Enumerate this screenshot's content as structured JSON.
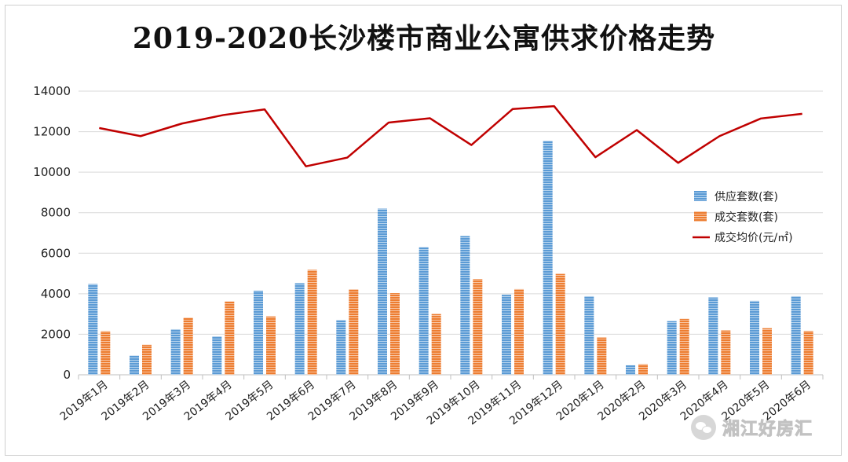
{
  "chart_data": {
    "type": "bar",
    "title": "2019-2020长沙楼市商业公寓供求价格走势",
    "categories": [
      "2019年1月",
      "2019年2月",
      "2019年3月",
      "2019年4月",
      "2019年5月",
      "2019年6月",
      "2019年7月",
      "2019年8月",
      "2019年9月",
      "2019年10月",
      "2019年11月",
      "2019年12月",
      "2020年1月",
      "2020年2月",
      "2020年3月",
      "2020年4月",
      "2020年5月",
      "2020年6月"
    ],
    "ylim": [
      0,
      14000
    ],
    "yticks": [
      "0",
      "2000",
      "4000",
      "6000",
      "8000",
      "10000",
      "12000",
      "14000"
    ],
    "grid": true,
    "legend_position": "right",
    "series": [
      {
        "name": "供应套数(套)",
        "type": "bar",
        "color": "#5b9bd5",
        "values": [
          4480,
          950,
          2250,
          1900,
          4150,
          4520,
          2700,
          8200,
          6300,
          6850,
          3950,
          11550,
          3880,
          470,
          2650,
          3820,
          3650,
          3880
        ]
      },
      {
        "name": "成交套数(套)",
        "type": "bar",
        "color": "#ed7d31",
        "values": [
          2150,
          1480,
          2820,
          3620,
          2880,
          5180,
          4220,
          4030,
          3000,
          4720,
          4230,
          4980,
          1840,
          520,
          2760,
          2190,
          2300,
          2160
        ]
      },
      {
        "name": "成交均价(元/㎡)",
        "type": "line",
        "color": "#c00000",
        "values": [
          12180,
          11780,
          12400,
          12820,
          13100,
          10290,
          10720,
          12450,
          12660,
          11340,
          13120,
          13260,
          10740,
          12080,
          10460,
          11780,
          12650,
          12880
        ]
      }
    ]
  },
  "watermark": {
    "text": "湘江好房汇",
    "icon": "wechat-icon"
  }
}
